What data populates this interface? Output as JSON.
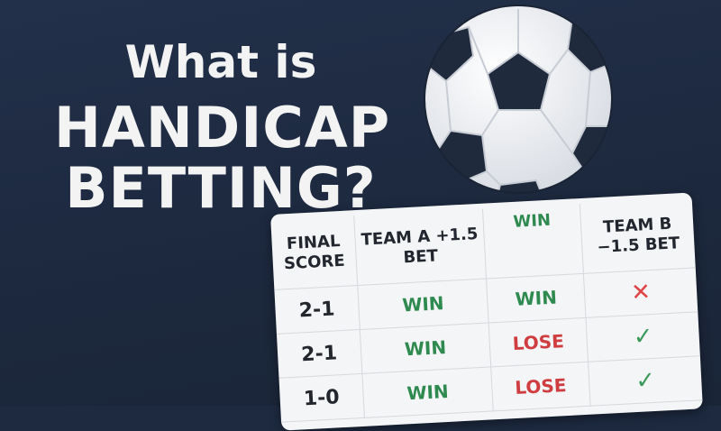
{
  "title": {
    "line1": "What is",
    "line2": "HANDICAP",
    "line3": "BETTING?"
  },
  "table": {
    "headers": [
      "FINAL SCORE",
      "TEAM A +1.5 BET",
      "WIN",
      "TEAM B −1.5 BET"
    ],
    "rows": [
      {
        "score": "2-1",
        "team_a": "WIN",
        "col3": "WIN",
        "team_b_icon": "x-icon",
        "team_b": "✕"
      },
      {
        "score": "2-1",
        "team_a": "WIN",
        "col3": "LOSE",
        "team_b_icon": "check-icon",
        "team_b": "✓"
      },
      {
        "score": "1-0",
        "team_a": "WIN",
        "col3": "LOSE",
        "team_b_icon": "check-icon",
        "team_b": "✓"
      }
    ]
  },
  "colors": {
    "background": "#1d2a40",
    "win": "#2e8a4e",
    "lose": "#cf3d40"
  }
}
